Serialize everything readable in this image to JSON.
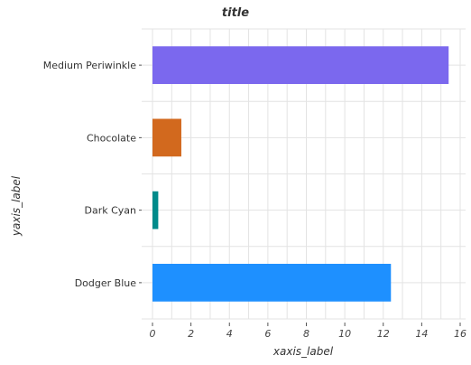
{
  "chart_data": {
    "type": "bar",
    "orientation": "horizontal",
    "title": "title",
    "xlabel": "xaxis_label",
    "ylabel": "yaxis_label",
    "categories": [
      "Dodger Blue",
      "Dark Cyan",
      "Chocolate",
      "Medium Periwinkle"
    ],
    "values": [
      12.4,
      0.3,
      1.5,
      15.4
    ],
    "colors": [
      "#1e90ff",
      "#008b8b",
      "#d2691e",
      "#7b68ee"
    ],
    "xlim": [
      0,
      16
    ],
    "xticks": [
      0,
      2,
      4,
      6,
      8,
      10,
      12,
      14,
      16
    ],
    "grid": true,
    "legend": "none"
  }
}
